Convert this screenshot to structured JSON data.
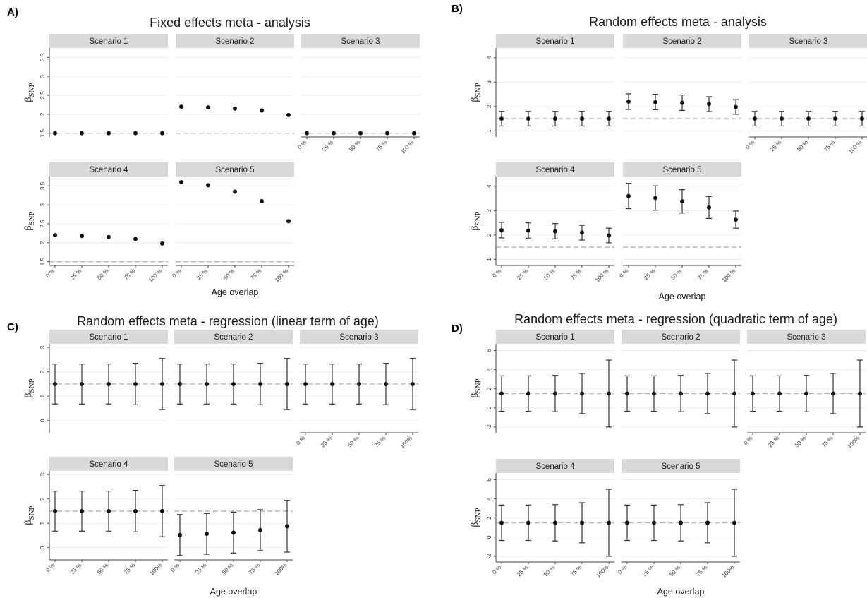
{
  "strip_prefix": "Scenario",
  "y_axis_label": {
    "base": "β",
    "sub": "SNP"
  },
  "x_axis_label": "Age overlap",
  "x_tick_labels": [
    "0 %",
    "25 %",
    "50 %",
    "75 %",
    "100 %"
  ],
  "x_tick_labels_short": [
    "0 %",
    "25 %",
    "50 %",
    "75 %",
    "100%"
  ],
  "reference_line": 1.5,
  "chart_data": [
    {
      "panel": "A)",
      "title": "Fixed effects meta - analysis",
      "type": "scatter",
      "error_bars": false,
      "x": [
        "0 %",
        "25 %",
        "50 %",
        "75 %",
        "100 %"
      ],
      "ylim": [
        1.4,
        3.75
      ],
      "yticks": [
        1.5,
        2,
        2.5,
        3,
        3.5
      ],
      "reference_line": 1.5,
      "series": [
        {
          "name": "Scenario 1",
          "values": [
            1.5,
            1.5,
            1.5,
            1.5,
            1.5
          ]
        },
        {
          "name": "Scenario 2",
          "values": [
            2.2,
            2.18,
            2.15,
            2.1,
            1.98
          ]
        },
        {
          "name": "Scenario 3",
          "values": [
            1.5,
            1.5,
            1.5,
            1.5,
            1.5
          ]
        },
        {
          "name": "Scenario 4",
          "values": [
            2.2,
            2.18,
            2.15,
            2.1,
            1.98
          ]
        },
        {
          "name": "Scenario 5",
          "values": [
            3.6,
            3.52,
            3.35,
            3.1,
            2.57
          ]
        }
      ]
    },
    {
      "panel": "B)",
      "title": "Random effects meta - analysis",
      "type": "scatter",
      "error_bars": true,
      "x": [
        "0 %",
        "25 %",
        "50 %",
        "75 %",
        "100 %"
      ],
      "ylim": [
        0.75,
        4.4
      ],
      "yticks": [
        1,
        2,
        3,
        4
      ],
      "reference_line": 1.5,
      "series": [
        {
          "name": "Scenario 1",
          "values": [
            1.5,
            1.5,
            1.5,
            1.5,
            1.5
          ],
          "lower": [
            1.2,
            1.2,
            1.2,
            1.2,
            1.2
          ],
          "upper": [
            1.8,
            1.8,
            1.8,
            1.8,
            1.8
          ]
        },
        {
          "name": "Scenario 2",
          "values": [
            2.2,
            2.18,
            2.15,
            2.1,
            1.98
          ],
          "lower": [
            1.88,
            1.87,
            1.84,
            1.79,
            1.68
          ],
          "upper": [
            2.52,
            2.5,
            2.47,
            2.4,
            2.28
          ]
        },
        {
          "name": "Scenario 3",
          "values": [
            1.5,
            1.5,
            1.5,
            1.5,
            1.5
          ],
          "lower": [
            1.2,
            1.2,
            1.2,
            1.2,
            1.2
          ],
          "upper": [
            1.8,
            1.8,
            1.8,
            1.8,
            1.8
          ]
        },
        {
          "name": "Scenario 4",
          "values": [
            2.2,
            2.18,
            2.15,
            2.1,
            1.98
          ],
          "lower": [
            1.88,
            1.87,
            1.84,
            1.79,
            1.68
          ],
          "upper": [
            2.52,
            2.5,
            2.47,
            2.4,
            2.28
          ]
        },
        {
          "name": "Scenario 5",
          "values": [
            3.6,
            3.52,
            3.38,
            3.13,
            2.63
          ],
          "lower": [
            3.08,
            3.02,
            2.9,
            2.68,
            2.28
          ],
          "upper": [
            4.12,
            4.02,
            3.86,
            3.58,
            2.98
          ]
        }
      ]
    },
    {
      "panel": "C)",
      "title": "Random effects meta - regression (linear term of age)",
      "type": "scatter",
      "error_bars": true,
      "x": [
        "0 %",
        "25 %",
        "50 %",
        "75 %",
        "100%"
      ],
      "ylim": [
        -0.5,
        3.15
      ],
      "yticks": [
        0,
        1,
        2,
        3
      ],
      "reference_line": 1.5,
      "series": [
        {
          "name": "Scenario 1",
          "values": [
            1.5,
            1.5,
            1.5,
            1.5,
            1.5
          ],
          "lower": [
            0.68,
            0.68,
            0.68,
            0.65,
            0.45
          ],
          "upper": [
            2.32,
            2.32,
            2.32,
            2.35,
            2.55
          ]
        },
        {
          "name": "Scenario 2",
          "values": [
            1.5,
            1.5,
            1.5,
            1.5,
            1.5
          ],
          "lower": [
            0.68,
            0.68,
            0.68,
            0.65,
            0.45
          ],
          "upper": [
            2.32,
            2.32,
            2.32,
            2.35,
            2.55
          ]
        },
        {
          "name": "Scenario 3",
          "values": [
            1.5,
            1.5,
            1.5,
            1.5,
            1.5
          ],
          "lower": [
            0.68,
            0.68,
            0.68,
            0.65,
            0.45
          ],
          "upper": [
            2.32,
            2.32,
            2.32,
            2.35,
            2.55
          ]
        },
        {
          "name": "Scenario 4",
          "values": [
            1.5,
            1.5,
            1.5,
            1.5,
            1.5
          ],
          "lower": [
            0.68,
            0.68,
            0.68,
            0.65,
            0.45
          ],
          "upper": [
            2.32,
            2.32,
            2.32,
            2.35,
            2.55
          ]
        },
        {
          "name": "Scenario 5",
          "values": [
            0.52,
            0.57,
            0.62,
            0.72,
            0.88
          ],
          "lower": [
            -0.32,
            -0.27,
            -0.22,
            -0.12,
            -0.18
          ],
          "upper": [
            1.36,
            1.4,
            1.46,
            1.56,
            1.94
          ]
        }
      ]
    },
    {
      "panel": "D)",
      "title": "Random effects meta - regression (quadratic term of age)",
      "type": "scatter",
      "error_bars": true,
      "x": [
        "0 %",
        "25 %",
        "50 %",
        "75 %",
        "100%"
      ],
      "ylim": [
        -2.6,
        6.7
      ],
      "yticks": [
        -2,
        0,
        2,
        4,
        6
      ],
      "reference_line": 1.5,
      "series": [
        {
          "name": "Scenario 1",
          "values": [
            1.5,
            1.5,
            1.5,
            1.5,
            1.5
          ],
          "lower": [
            -0.35,
            -0.35,
            -0.4,
            -0.6,
            -2.0
          ],
          "upper": [
            3.35,
            3.35,
            3.4,
            3.6,
            5.0
          ]
        },
        {
          "name": "Scenario 2",
          "values": [
            1.5,
            1.5,
            1.5,
            1.5,
            1.5
          ],
          "lower": [
            -0.35,
            -0.35,
            -0.4,
            -0.6,
            -2.0
          ],
          "upper": [
            3.35,
            3.35,
            3.4,
            3.6,
            5.0
          ]
        },
        {
          "name": "Scenario 3",
          "values": [
            1.5,
            1.5,
            1.5,
            1.5,
            1.5
          ],
          "lower": [
            -0.35,
            -0.35,
            -0.4,
            -0.6,
            -2.0
          ],
          "upper": [
            3.35,
            3.35,
            3.4,
            3.6,
            5.0
          ]
        },
        {
          "name": "Scenario 4",
          "values": [
            1.5,
            1.5,
            1.5,
            1.5,
            1.5
          ],
          "lower": [
            -0.35,
            -0.35,
            -0.4,
            -0.6,
            -2.0
          ],
          "upper": [
            3.35,
            3.35,
            3.4,
            3.6,
            5.0
          ]
        },
        {
          "name": "Scenario 5",
          "values": [
            1.5,
            1.5,
            1.5,
            1.5,
            1.5
          ],
          "lower": [
            -0.35,
            -0.35,
            -0.4,
            -0.6,
            -2.0
          ],
          "upper": [
            3.35,
            3.35,
            3.4,
            3.6,
            5.0
          ]
        }
      ]
    }
  ]
}
